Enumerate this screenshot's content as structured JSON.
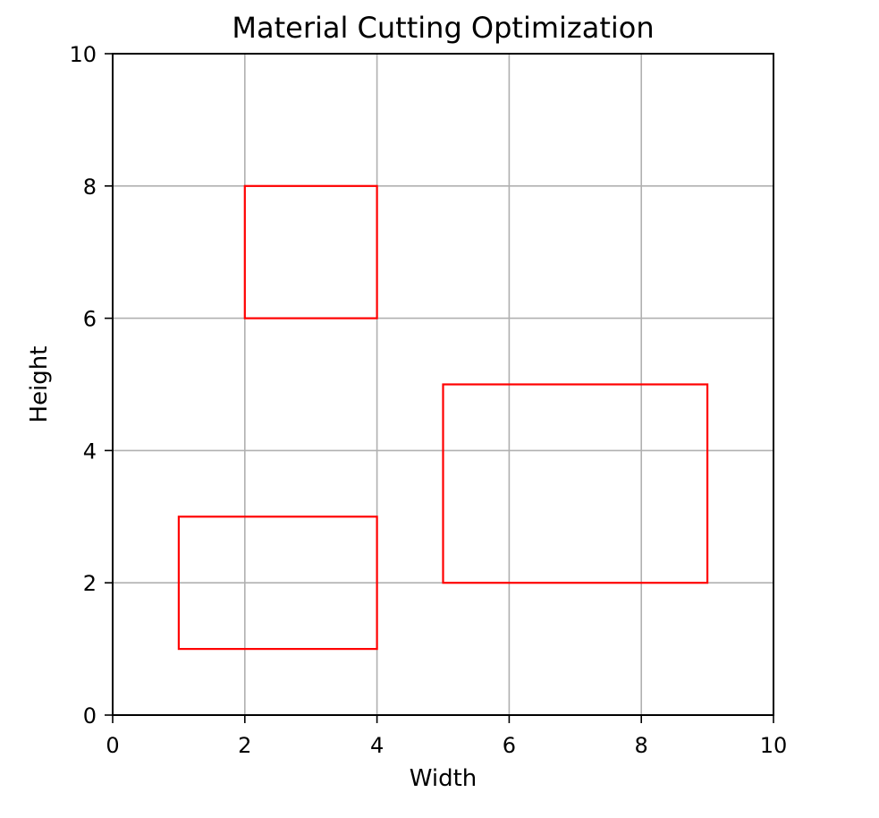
{
  "chart_data": {
    "type": "rectangles",
    "title": "Material Cutting Optimization",
    "xlabel": "Width",
    "ylabel": "Height",
    "xlim": [
      0,
      10
    ],
    "ylim": [
      0,
      10
    ],
    "xticks": [
      0,
      2,
      4,
      6,
      8,
      10
    ],
    "yticks": [
      0,
      2,
      4,
      6,
      8,
      10
    ],
    "xtick_labels": [
      "0",
      "2",
      "4",
      "6",
      "8",
      "10"
    ],
    "ytick_labels": [
      "0",
      "2",
      "4",
      "6",
      "8",
      "10"
    ],
    "grid": true,
    "aspect": "equal",
    "edge_color": "#ff0000",
    "pieces": [
      {
        "x": 1,
        "y": 1,
        "width": 3,
        "height": 2
      },
      {
        "x": 5,
        "y": 2,
        "width": 4,
        "height": 3
      },
      {
        "x": 2,
        "y": 6,
        "width": 2,
        "height": 2
      }
    ]
  }
}
